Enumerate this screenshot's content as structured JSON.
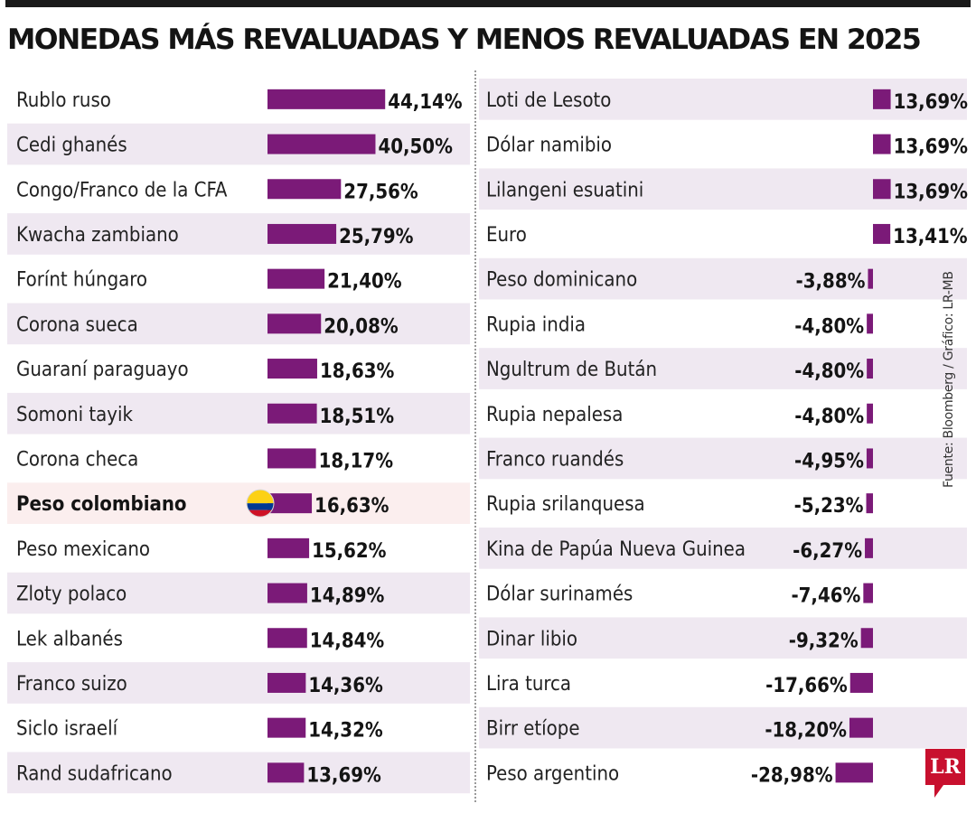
{
  "header": {
    "title": "MONEDAS MÁS REVALUADAS Y MENOS REVALUADAS EN 2025"
  },
  "footer": {
    "source": "Fuente: Bloomberg / Gráfico: LR-MB",
    "logo": "LR"
  },
  "colors": {
    "bar": "#7b1a78",
    "row_stripe": "#efe8f1",
    "highlight_row": "#fbeeee"
  },
  "icons": {
    "highlight_marker": "colombia-flag-icon"
  },
  "chart_data": [
    {
      "type": "bar",
      "orientation": "horizontal",
      "title": "",
      "unit": "%",
      "categories": [
        "Rublo ruso",
        "Cedi ghanés",
        "Congo/Franco de la CFA",
        "Kwacha zambiano",
        "Forínt húngaro",
        "Corona sueca",
        "Guaraní paraguayo",
        "Somoni tayik",
        "Corona checa",
        "Peso colombiano",
        "Peso mexicano",
        "Zloty polaco",
        "Lek albanés",
        "Franco suizo",
        "Siclo israelí",
        "Rand sudafricano"
      ],
      "values": [
        44.14,
        40.5,
        27.56,
        25.79,
        21.4,
        20.08,
        18.63,
        18.51,
        18.17,
        16.63,
        15.62,
        14.89,
        14.84,
        14.36,
        14.32,
        13.69
      ],
      "value_labels": [
        "44,14%",
        "40,50%",
        "27,56%",
        "25,79%",
        "21,40%",
        "20,08%",
        "18,63%",
        "18,51%",
        "18,17%",
        "16,63%",
        "15,62%",
        "14,89%",
        "14,84%",
        "14,36%",
        "14,32%",
        "13,69%"
      ],
      "highlight": "Peso colombiano"
    },
    {
      "type": "bar",
      "orientation": "horizontal",
      "title": "",
      "unit": "%",
      "categories": [
        "Loti de Lesoto",
        "Dólar namibio",
        "Lilangeni esuatini",
        "Euro",
        "Peso dominicano",
        "Rupia india",
        "Ngultrum de Bután",
        "Rupia nepalesa",
        "Franco ruandés",
        "Rupia srilanquesa",
        "Kina de Papúa Nueva Guinea",
        "Dólar surinamés",
        "Dinar libio",
        "Lira turca",
        "Birr etíope",
        "Peso argentino"
      ],
      "values": [
        13.69,
        13.69,
        13.69,
        13.41,
        -3.88,
        -4.8,
        -4.8,
        -4.8,
        -4.95,
        -5.23,
        -6.27,
        -7.46,
        -9.32,
        -17.66,
        -18.2,
        -28.98
      ],
      "value_labels": [
        "13,69%",
        "13,69%",
        "13,69%",
        "13,41%",
        "-3,88%",
        "-4,80%",
        "-4,80%",
        "-4,80%",
        "-4,95%",
        "-5,23%",
        "-6,27%",
        "-7,46%",
        "-9,32%",
        "-17,66%",
        "-18,20%",
        "-28,98%"
      ]
    }
  ]
}
